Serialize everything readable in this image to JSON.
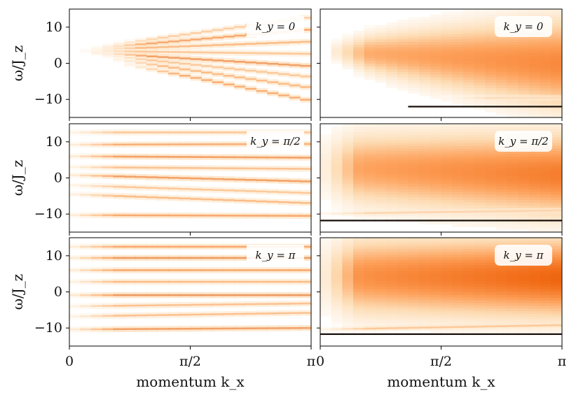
{
  "chart_data": {
    "type": "heatmap",
    "colormap": "Oranges",
    "layout": {
      "rows": 3,
      "cols": 2
    },
    "x": {
      "label": "momentum k_x",
      "ticks": [
        0,
        1.5708,
        3.1416
      ],
      "tick_labels": [
        "0",
        "π/2",
        "π"
      ],
      "lim": [
        0,
        3.1416
      ]
    },
    "y": {
      "label": "ω/J_z",
      "ticks": [
        -10,
        0,
        10
      ],
      "tick_labels": [
        "−10",
        "0",
        "10"
      ],
      "lim": [
        -15,
        15
      ]
    },
    "panels": [
      {
        "row": 0,
        "col": 0,
        "label": "k_y = 0",
        "style": "lines",
        "density": 0.45,
        "bands": [
          {
            "y": [
              3.5,
              12.8
            ],
            "strength": 0.45,
            "onset": 0.55
          },
          {
            "y": [
              3.5,
              9.4
            ],
            "strength": 0.75,
            "onset": 0.4
          },
          {
            "y": [
              3.5,
              6.0
            ],
            "strength": 0.6,
            "onset": 0.3
          },
          {
            "y": [
              3.5,
              2.6
            ],
            "strength": 0.5,
            "onset": 0.25
          },
          {
            "y": [
              3.3,
              -0.8
            ],
            "strength": 0.8,
            "onset": 0.35
          },
          {
            "y": [
              3.2,
              -3.8
            ],
            "strength": 0.5,
            "onset": 0.45
          },
          {
            "y": [
              3.0,
              -6.8
            ],
            "strength": 0.6,
            "onset": 0.6
          },
          {
            "y": [
              2.9,
              -10.4
            ],
            "strength": 0.7,
            "onset": 0.8
          }
        ]
      },
      {
        "row": 0,
        "col": 1,
        "label": "k_y = 0",
        "style": "continuum",
        "density": 0.6,
        "continuum": {
          "center": [
            3.5,
            0.0
          ],
          "halfwidth": [
            0.8,
            12.5
          ],
          "strength": 0.55,
          "onset": 0.1
        },
        "bands": [
          {
            "y": [
              -12.0,
              -12.0
            ],
            "strength": 1.0,
            "onset": 1.2,
            "dark": true
          },
          {
            "y": [
              -9.6,
              -9.6
            ],
            "strength": 0.35,
            "onset": 1.6
          }
        ]
      },
      {
        "row": 1,
        "col": 0,
        "label": "k_y = π/2",
        "style": "lines",
        "density": 0.55,
        "bands": [
          {
            "y": [
              12.6,
              12.6
            ],
            "strength": 0.5,
            "onset": 0.0
          },
          {
            "y": [
              9.2,
              9.4
            ],
            "strength": 0.7,
            "onset": 0.0
          },
          {
            "y": [
              6.0,
              5.6
            ],
            "strength": 0.8,
            "onset": 0.0
          },
          {
            "y": [
              3.0,
              2.5
            ],
            "strength": 0.55,
            "onset": 0.0
          },
          {
            "y": [
              0.8,
              -1.0
            ],
            "strength": 0.8,
            "onset": 0.0
          },
          {
            "y": [
              -2.0,
              -4.2
            ],
            "strength": 0.5,
            "onset": 0.0
          },
          {
            "y": [
              -4.5,
              -7.0
            ],
            "strength": 0.6,
            "onset": 0.0
          },
          {
            "y": [
              -10.3,
              -10.5
            ],
            "strength": 0.75,
            "onset": 0.0
          }
        ]
      },
      {
        "row": 1,
        "col": 1,
        "label": "k_y = π/2",
        "style": "continuum",
        "density": 0.75,
        "continuum": {
          "center": [
            3.0,
            1.0
          ],
          "halfwidth": [
            9.0,
            11.5
          ],
          "strength": 0.6,
          "onset": 0.0
        },
        "bands": [
          {
            "y": [
              -11.8,
              -11.8
            ],
            "strength": 1.0,
            "onset": 0.0,
            "dark": true
          },
          {
            "y": [
              -9.9,
              -9.0
            ],
            "strength": 0.4,
            "onset": 0.0
          }
        ]
      },
      {
        "row": 2,
        "col": 0,
        "label": "k_y = π",
        "style": "lines",
        "density": 0.65,
        "bands": [
          {
            "y": [
              12.5,
              12.5
            ],
            "strength": 0.75,
            "onset": 0.0
          },
          {
            "y": [
              9.4,
              9.4
            ],
            "strength": 0.85,
            "onset": 0.0
          },
          {
            "y": [
              6.0,
              6.0
            ],
            "strength": 0.75,
            "onset": 0.0
          },
          {
            "y": [
              2.8,
              2.8
            ],
            "strength": 0.6,
            "onset": 0.0
          },
          {
            "y": [
              -0.9,
              -0.9
            ],
            "strength": 0.85,
            "onset": 0.0
          },
          {
            "y": [
              -4.0,
              -3.2
            ],
            "strength": 0.55,
            "onset": 0.0
          },
          {
            "y": [
              -6.8,
              -5.8
            ],
            "strength": 0.55,
            "onset": 0.0
          },
          {
            "y": [
              -10.4,
              -10.0
            ],
            "strength": 0.8,
            "onset": 0.0
          }
        ]
      },
      {
        "row": 2,
        "col": 1,
        "label": "k_y = π",
        "style": "continuum",
        "density": 0.9,
        "continuum": {
          "center": [
            4.5,
            4.0
          ],
          "halfwidth": [
            10.5,
            11.0
          ],
          "strength": 0.7,
          "onset": 0.0
        },
        "bands": [
          {
            "y": [
              -11.7,
              -11.7
            ],
            "strength": 1.0,
            "onset": 0.0,
            "dark": true
          },
          {
            "y": [
              -10.4,
              -9.2
            ],
            "strength": 0.5,
            "onset": 0.0
          }
        ]
      }
    ]
  }
}
